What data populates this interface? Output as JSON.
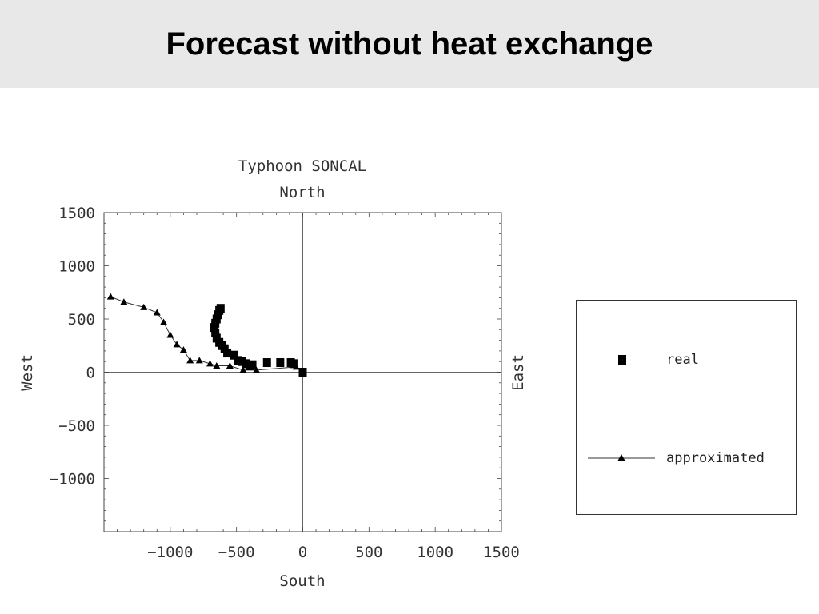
{
  "page": {
    "title": "Forecast without heat exchange"
  },
  "chart_data": {
    "type": "scatter",
    "title": "Typhoon SONCAL",
    "top_label": "North",
    "xlabel": "South",
    "ylabel": "West",
    "right_label": "East",
    "xlim": [
      -1500,
      1500
    ],
    "ylim": [
      -1500,
      1500
    ],
    "xticks": [
      -1000,
      -500,
      0,
      500,
      1000,
      1500
    ],
    "yticks": [
      1500,
      1000,
      500,
      0,
      -500,
      -1000
    ],
    "grid": false,
    "axes_through_origin": true,
    "legend_placement": "right",
    "series": [
      {
        "name": "real",
        "marker": "square",
        "line": false,
        "color": "#000000",
        "x": [
          0,
          -70,
          -90,
          -170,
          -270,
          -380,
          -400,
          -430,
          -460,
          -490,
          -520,
          -570,
          -590,
          -610,
          -630,
          -650,
          -660,
          -670,
          -660,
          -650,
          -640,
          -630,
          -620
        ],
        "y": [
          0,
          80,
          90,
          90,
          90,
          70,
          60,
          80,
          100,
          110,
          160,
          180,
          220,
          250,
          280,
          320,
          370,
          420,
          460,
          500,
          540,
          580,
          600
        ]
      },
      {
        "name": "approximated",
        "marker": "triangle",
        "line": true,
        "color": "#000000",
        "x": [
          0,
          -50,
          -350,
          -450,
          -550,
          -650,
          -700,
          -780,
          -850,
          -900,
          -950,
          -1000,
          -1050,
          -1100,
          -1200,
          -1350,
          -1450
        ],
        "y": [
          0,
          50,
          20,
          20,
          60,
          60,
          80,
          110,
          110,
          210,
          260,
          350,
          470,
          560,
          610,
          660,
          710
        ]
      }
    ]
  },
  "legend": {
    "items": [
      {
        "label": "real",
        "symbol": "square-icon"
      },
      {
        "label": "approximated",
        "symbol": "line-triangle-icon"
      }
    ]
  }
}
